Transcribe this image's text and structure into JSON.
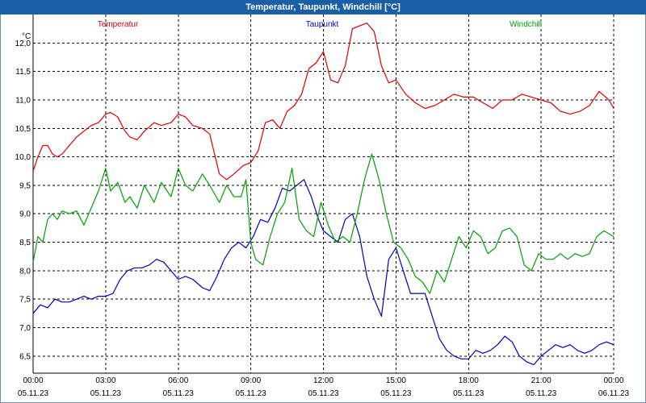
{
  "window": {
    "title": "Temperatur, Taupunkt, Windchill [°C]"
  },
  "chart_data": {
    "type": "line",
    "title": "Temperatur, Taupunkt, Windchill [°C]",
    "ylabel": "°C",
    "ylim": [
      6.2,
      12.5
    ],
    "yticks": [
      6.5,
      7.0,
      7.5,
      8.0,
      8.5,
      9.0,
      9.5,
      10.0,
      10.5,
      11.0,
      11.5,
      12.0
    ],
    "ytick_labels": [
      "6,5",
      "7,0",
      "7,5",
      "8,0",
      "8,5",
      "9,0",
      "9,5",
      "10,0",
      "10,5",
      "11,0",
      "11,5",
      "12,0"
    ],
    "xlim": [
      0,
      24
    ],
    "xticks": [
      {
        "x": 0,
        "time": "00:00",
        "date": "05.11.23"
      },
      {
        "x": 3,
        "time": "03:00",
        "date": "05.11.23"
      },
      {
        "x": 6,
        "time": "06:00",
        "date": "05.11.23"
      },
      {
        "x": 9,
        "time": "09:00",
        "date": "05.11.23"
      },
      {
        "x": 12,
        "time": "12:00",
        "date": "05.11.23"
      },
      {
        "x": 15,
        "time": "15:00",
        "date": "05.11.23"
      },
      {
        "x": 18,
        "time": "18:00",
        "date": "05.11.23"
      },
      {
        "x": 21,
        "time": "21:00",
        "date": "05.11.23"
      },
      {
        "x": 24,
        "time": "00:00",
        "date": "06.11.23"
      }
    ],
    "grid": true,
    "legend_position": "top",
    "series": [
      {
        "name": "Temperatur",
        "color": "#dd0000",
        "x": [
          0,
          0.2,
          0.4,
          0.6,
          0.8,
          1.0,
          1.2,
          1.5,
          1.8,
          2.1,
          2.4,
          2.7,
          3.0,
          3.2,
          3.5,
          3.8,
          4.0,
          4.3,
          4.6,
          5.0,
          5.3,
          5.7,
          6.0,
          6.3,
          6.6,
          7.0,
          7.3,
          7.5,
          7.7,
          8.0,
          8.3,
          8.7,
          9.0,
          9.3,
          9.6,
          9.9,
          10.2,
          10.5,
          10.8,
          11.1,
          11.4,
          11.7,
          12.0,
          12.3,
          12.6,
          12.9,
          13.2,
          13.5,
          13.8,
          14.1,
          14.4,
          14.7,
          15.0,
          15.4,
          15.8,
          16.2,
          16.6,
          17.0,
          17.4,
          17.8,
          18.2,
          18.6,
          19.0,
          19.4,
          19.8,
          20.2,
          20.6,
          21.0,
          21.4,
          21.8,
          22.2,
          22.6,
          23.0,
          23.4,
          23.8,
          24.0
        ],
        "y": [
          9.75,
          10.0,
          10.2,
          10.2,
          10.05,
          10.0,
          10.05,
          10.2,
          10.35,
          10.45,
          10.55,
          10.6,
          10.75,
          10.78,
          10.7,
          10.45,
          10.35,
          10.3,
          10.45,
          10.6,
          10.55,
          10.6,
          10.75,
          10.7,
          10.55,
          10.5,
          10.4,
          10.05,
          9.7,
          9.6,
          9.7,
          9.85,
          9.9,
          10.1,
          10.6,
          10.65,
          10.5,
          10.8,
          10.9,
          11.1,
          11.55,
          11.65,
          11.85,
          11.35,
          11.3,
          11.6,
          12.25,
          12.3,
          12.35,
          12.2,
          11.6,
          11.3,
          11.35,
          11.1,
          10.95,
          10.85,
          10.9,
          11.0,
          11.1,
          11.05,
          11.05,
          10.95,
          10.85,
          11.0,
          11.0,
          11.1,
          11.05,
          11.0,
          10.95,
          10.8,
          10.75,
          10.8,
          10.9,
          11.15,
          11.0,
          10.85
        ]
      },
      {
        "name": "Taupunkt",
        "color": "#0000bb",
        "x": [
          0,
          0.3,
          0.6,
          0.9,
          1.2,
          1.5,
          1.8,
          2.1,
          2.4,
          2.7,
          3.0,
          3.3,
          3.6,
          3.9,
          4.2,
          4.5,
          4.8,
          5.1,
          5.4,
          5.7,
          6.0,
          6.3,
          6.6,
          7.0,
          7.3,
          7.6,
          7.9,
          8.2,
          8.5,
          8.8,
          9.1,
          9.4,
          9.7,
          10.0,
          10.3,
          10.6,
          10.9,
          11.2,
          11.5,
          11.8,
          12.0,
          12.3,
          12.6,
          12.9,
          13.2,
          13.5,
          13.8,
          14.1,
          14.4,
          14.7,
          15.0,
          15.3,
          15.6,
          15.9,
          16.2,
          16.5,
          16.8,
          17.1,
          17.4,
          17.7,
          18.0,
          18.3,
          18.6,
          18.9,
          19.2,
          19.5,
          19.8,
          20.1,
          20.4,
          20.7,
          21.0,
          21.3,
          21.6,
          21.9,
          22.2,
          22.5,
          22.8,
          23.1,
          23.4,
          23.7,
          24.0
        ],
        "y": [
          7.25,
          7.4,
          7.35,
          7.5,
          7.45,
          7.45,
          7.5,
          7.55,
          7.5,
          7.55,
          7.55,
          7.6,
          7.85,
          8.0,
          8.05,
          8.05,
          8.1,
          8.2,
          8.15,
          8.0,
          7.85,
          7.9,
          7.85,
          7.7,
          7.65,
          7.9,
          8.2,
          8.4,
          8.5,
          8.4,
          8.6,
          8.9,
          8.85,
          9.1,
          9.45,
          9.4,
          9.5,
          9.6,
          9.3,
          8.9,
          8.7,
          8.6,
          8.5,
          8.9,
          9.0,
          8.6,
          7.9,
          7.5,
          7.2,
          8.2,
          8.4,
          8.0,
          7.6,
          7.6,
          7.6,
          7.2,
          6.8,
          6.6,
          6.5,
          6.45,
          6.45,
          6.6,
          6.55,
          6.6,
          6.7,
          6.85,
          6.75,
          6.5,
          6.4,
          6.35,
          6.5,
          6.6,
          6.7,
          6.65,
          6.7,
          6.6,
          6.55,
          6.6,
          6.7,
          6.75,
          6.7
        ]
      },
      {
        "name": "Windchill",
        "color": "#00a000",
        "x": [
          0,
          0.2,
          0.4,
          0.6,
          0.8,
          1.0,
          1.2,
          1.5,
          1.8,
          2.1,
          2.4,
          2.7,
          3.0,
          3.2,
          3.5,
          3.8,
          4.0,
          4.3,
          4.6,
          5.0,
          5.3,
          5.7,
          6.0,
          6.3,
          6.6,
          7.0,
          7.3,
          7.5,
          7.7,
          8.0,
          8.3,
          8.6,
          8.8,
          9.0,
          9.2,
          9.5,
          9.8,
          10.1,
          10.4,
          10.7,
          11.0,
          11.3,
          11.6,
          11.9,
          12.2,
          12.5,
          12.8,
          13.1,
          13.4,
          13.7,
          14.0,
          14.3,
          14.6,
          14.9,
          15.2,
          15.5,
          15.8,
          16.1,
          16.4,
          16.7,
          17.0,
          17.3,
          17.6,
          17.9,
          18.2,
          18.5,
          18.8,
          19.1,
          19.4,
          19.7,
          20.0,
          20.3,
          20.6,
          20.9,
          21.2,
          21.5,
          21.8,
          22.1,
          22.4,
          22.7,
          23.0,
          23.3,
          23.6,
          24.0
        ],
        "y": [
          8.15,
          8.6,
          8.5,
          8.9,
          9.0,
          8.9,
          9.05,
          9.0,
          9.05,
          8.8,
          9.1,
          9.4,
          9.8,
          9.4,
          9.55,
          9.2,
          9.3,
          9.1,
          9.5,
          9.2,
          9.55,
          9.3,
          9.8,
          9.5,
          9.4,
          9.7,
          9.5,
          9.35,
          9.2,
          9.5,
          9.3,
          9.3,
          9.6,
          8.5,
          8.2,
          8.1,
          8.6,
          9.0,
          9.2,
          9.8,
          8.9,
          8.7,
          8.6,
          9.2,
          8.8,
          8.5,
          8.6,
          8.5,
          9.0,
          9.6,
          10.05,
          9.6,
          9.0,
          8.5,
          8.4,
          8.2,
          7.9,
          7.8,
          7.6,
          8.0,
          7.8,
          8.2,
          8.6,
          8.4,
          8.7,
          8.6,
          8.3,
          8.4,
          8.7,
          8.75,
          8.6,
          8.1,
          8.0,
          8.3,
          8.2,
          8.2,
          8.3,
          8.2,
          8.3,
          8.25,
          8.3,
          8.6,
          8.7,
          8.6
        ]
      }
    ]
  }
}
